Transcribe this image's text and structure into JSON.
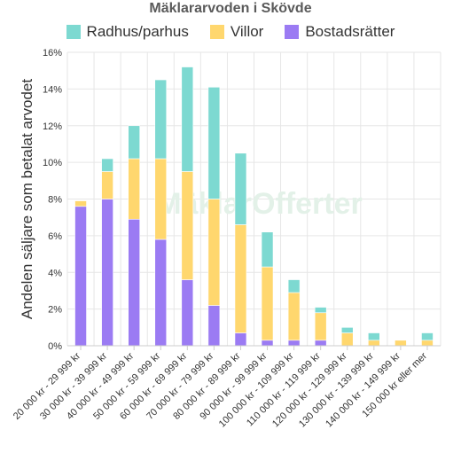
{
  "chart_data": {
    "type": "bar",
    "stacked": true,
    "title": "Mäklararvoden i Skövde",
    "xlabel": "",
    "ylabel": "Andelen säljare som betalat arvodet",
    "ylim": [
      0,
      16
    ],
    "yticks": [
      "0%",
      "2%",
      "4%",
      "6%",
      "8%",
      "10%",
      "12%",
      "14%",
      "16%"
    ],
    "ytick_values": [
      0,
      2,
      4,
      6,
      8,
      10,
      12,
      14,
      16
    ],
    "grid": true,
    "legend_position": "top",
    "categories": [
      "20 000 kr - 29 999 kr",
      "30 000 kr - 39 999 kr",
      "40 000 kr - 49 999 kr",
      "50 000 kr - 59 999 kr",
      "60 000 kr - 69 999 kr",
      "70 000 kr - 79 999 kr",
      "80 000 kr - 89 999 kr",
      "90 000 kr - 99 999 kr",
      "100 000 kr - 109 999 kr",
      "110 000 kr - 119 999 kr",
      "120 000 kr - 129 999 kr",
      "130 000 kr - 139 999 kr",
      "140 000 kr - 149 999 kr",
      "150 000 kr eller mer"
    ],
    "series": [
      {
        "name": "Bostadsrätter",
        "color": "#9b7bf3",
        "values": [
          7.6,
          8.0,
          6.9,
          5.8,
          3.6,
          2.2,
          0.7,
          0.3,
          0.3,
          0.3,
          0.0,
          0.0,
          0.0,
          0.0
        ]
      },
      {
        "name": "Villor",
        "color": "#ffd76e",
        "values": [
          0.3,
          1.5,
          3.3,
          4.4,
          5.9,
          5.8,
          5.9,
          4.0,
          2.6,
          1.5,
          0.7,
          0.3,
          0.3,
          0.3
        ]
      },
      {
        "name": "Radhus/parhus",
        "color": "#7dd9d1",
        "values": [
          0.0,
          0.7,
          1.8,
          4.3,
          5.7,
          6.1,
          3.9,
          1.9,
          0.7,
          0.3,
          0.3,
          0.4,
          0.0,
          0.4
        ]
      }
    ],
    "legend_order": [
      "Radhus/parhus",
      "Villor",
      "Bostadsrätter"
    ]
  },
  "watermark": {
    "text": "MäklarOfferter"
  },
  "colors": {
    "grid": "#e6e6e6",
    "axis": "#cccccc",
    "text": "#333333"
  }
}
